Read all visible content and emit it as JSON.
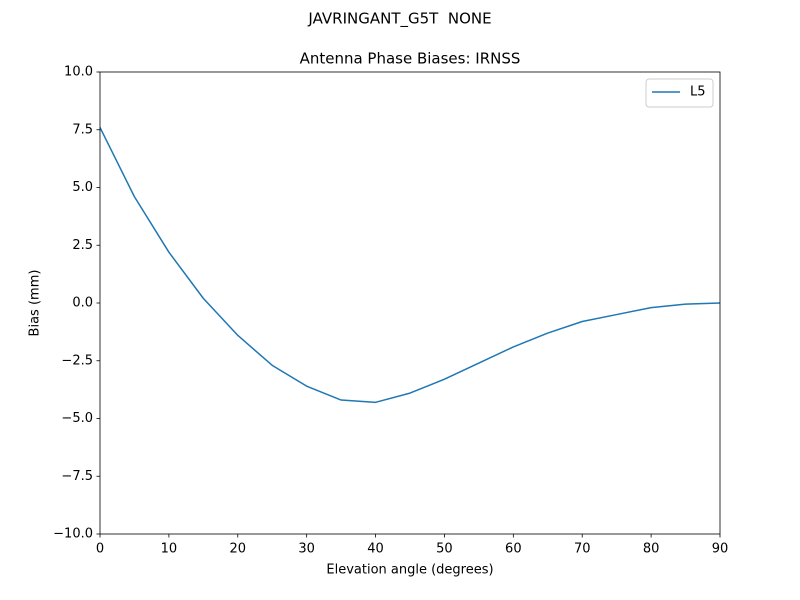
{
  "chart_data": {
    "type": "line",
    "suptitle": "JAVRINGANT_G5T  NONE",
    "title": "Antenna Phase Biases: IRNSS",
    "xlabel": "Elevation angle (degrees)",
    "ylabel": "Bias (mm)",
    "x": [
      0,
      5,
      10,
      15,
      20,
      25,
      30,
      35,
      40,
      45,
      50,
      55,
      60,
      65,
      70,
      75,
      80,
      85,
      90
    ],
    "series": [
      {
        "name": "L5",
        "color": "#1f77b4",
        "values": [
          7.6,
          4.6,
          2.2,
          0.2,
          -1.4,
          -2.7,
          -3.6,
          -4.2,
          -4.3,
          -3.9,
          -3.3,
          -2.6,
          -1.9,
          -1.3,
          -0.8,
          -0.5,
          -0.2,
          -0.05,
          0
        ]
      }
    ],
    "xlim": [
      0,
      90
    ],
    "xticks": [
      0,
      10,
      20,
      30,
      40,
      50,
      60,
      70,
      80,
      90
    ],
    "ylim": [
      -10,
      10
    ],
    "yticks": [
      {
        "value": -10,
        "label": "−10.0"
      },
      {
        "value": -7.5,
        "label": "−7.5"
      },
      {
        "value": -5,
        "label": "−5.0"
      },
      {
        "value": -2.5,
        "label": "−2.5"
      },
      {
        "value": 0,
        "label": "0.0"
      },
      {
        "value": 2.5,
        "label": "2.5"
      },
      {
        "value": 5,
        "label": "5.0"
      },
      {
        "value": 7.5,
        "label": "7.5"
      },
      {
        "value": 10,
        "label": "10.0"
      }
    ],
    "grid": false,
    "legend": "upper right"
  }
}
